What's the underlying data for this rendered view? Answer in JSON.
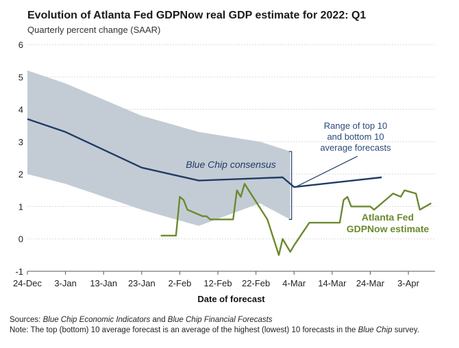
{
  "chart_data": {
    "type": "line",
    "title": "Evolution of Atlanta Fed GDPNow real GDP estimate for 2022: Q1",
    "subtitle": "Quarterly percent change (SAAR)",
    "xlabel": "Date of forecast",
    "ylabel": "",
    "ylim": [
      -1,
      6
    ],
    "y_ticks": [
      "6",
      "5",
      "4",
      "3",
      "2",
      "1",
      "0",
      "-1"
    ],
    "x_ticks": [
      "24-Dec",
      "3-Jan",
      "13-Jan",
      "23-Jan",
      "2-Feb",
      "12-Feb",
      "22-Feb",
      "4-Mar",
      "14-Mar",
      "24-Mar",
      "3-Apr"
    ],
    "x_domain": [
      "2021-12-24",
      "2022-04-10"
    ],
    "grid": "horizontal",
    "series": [
      {
        "name": "Range of top 10 and bottom 10 average forecasts",
        "kind": "band",
        "color": "#c3ccd4",
        "points": [
          {
            "x": "2021-12-24",
            "low": 2.0,
            "high": 5.2
          },
          {
            "x": "2022-01-03",
            "low": 1.7,
            "high": 4.8
          },
          {
            "x": "2022-01-23",
            "low": 0.9,
            "high": 3.8
          },
          {
            "x": "2022-02-07",
            "low": 0.4,
            "high": 3.3
          },
          {
            "x": "2022-02-23",
            "low": 1.1,
            "high": 3.0
          },
          {
            "x": "2022-03-03",
            "low": 0.6,
            "high": 2.7
          }
        ]
      },
      {
        "name": "Blue Chip consensus",
        "kind": "line",
        "color": "#1f3b66",
        "points": [
          {
            "x": "2021-12-24",
            "y": 3.7
          },
          {
            "x": "2022-01-03",
            "y": 3.3
          },
          {
            "x": "2022-01-23",
            "y": 2.2
          },
          {
            "x": "2022-02-07",
            "y": 1.8
          },
          {
            "x": "2022-03-01",
            "y": 1.9
          },
          {
            "x": "2022-03-04",
            "y": 1.6
          },
          {
            "x": "2022-03-27",
            "y": 1.9
          }
        ]
      },
      {
        "name": "Atlanta Fed GDPNow estimate",
        "kind": "line",
        "color": "#6b8a2f",
        "points": [
          {
            "x": "2022-01-28",
            "y": 0.1
          },
          {
            "x": "2022-02-01",
            "y": 0.1
          },
          {
            "x": "2022-02-02",
            "y": 1.3
          },
          {
            "x": "2022-02-03",
            "y": 1.2
          },
          {
            "x": "2022-02-04",
            "y": 0.9
          },
          {
            "x": "2022-02-08",
            "y": 0.7
          },
          {
            "x": "2022-02-09",
            "y": 0.7
          },
          {
            "x": "2022-02-10",
            "y": 0.6
          },
          {
            "x": "2022-02-16",
            "y": 0.6
          },
          {
            "x": "2022-02-17",
            "y": 1.5
          },
          {
            "x": "2022-02-18",
            "y": 1.3
          },
          {
            "x": "2022-02-19",
            "y": 1.7
          },
          {
            "x": "2022-02-25",
            "y": 0.6
          },
          {
            "x": "2022-02-28",
            "y": -0.5
          },
          {
            "x": "2022-03-01",
            "y": 0.0
          },
          {
            "x": "2022-03-03",
            "y": -0.4
          },
          {
            "x": "2022-03-04",
            "y": -0.2
          },
          {
            "x": "2022-03-08",
            "y": 0.5
          },
          {
            "x": "2022-03-16",
            "y": 0.5
          },
          {
            "x": "2022-03-17",
            "y": 1.2
          },
          {
            "x": "2022-03-18",
            "y": 1.3
          },
          {
            "x": "2022-03-19",
            "y": 1.0
          },
          {
            "x": "2022-03-24",
            "y": 1.0
          },
          {
            "x": "2022-03-25",
            "y": 0.9
          },
          {
            "x": "2022-03-30",
            "y": 1.4
          },
          {
            "x": "2022-04-01",
            "y": 1.3
          },
          {
            "x": "2022-04-02",
            "y": 1.5
          },
          {
            "x": "2022-04-05",
            "y": 1.4
          },
          {
            "x": "2022-04-06",
            "y": 0.9
          },
          {
            "x": "2022-04-09",
            "y": 1.1
          }
        ]
      }
    ],
    "annotations": {
      "range_label": [
        "Range of top 10",
        "and bottom 10",
        "average forecasts"
      ],
      "consensus_label": "Blue Chip consensus",
      "gdpnow_label": [
        "Atlanta Fed",
        "GDPNow estimate"
      ]
    }
  },
  "notes": {
    "sources_label": "Sources:",
    "sources_text_1": "Blue Chip Economic Indicators",
    "sources_and": " and ",
    "sources_text_2": "Blue Chip Financial Forecasts",
    "note_label": "Note",
    "note_text_1": ": The top (bottom) 10 average forecast is an average of the highest (lowest) 10 forecasts in the ",
    "note_text_2": "Blue Chip",
    "note_text_3": " survey."
  }
}
